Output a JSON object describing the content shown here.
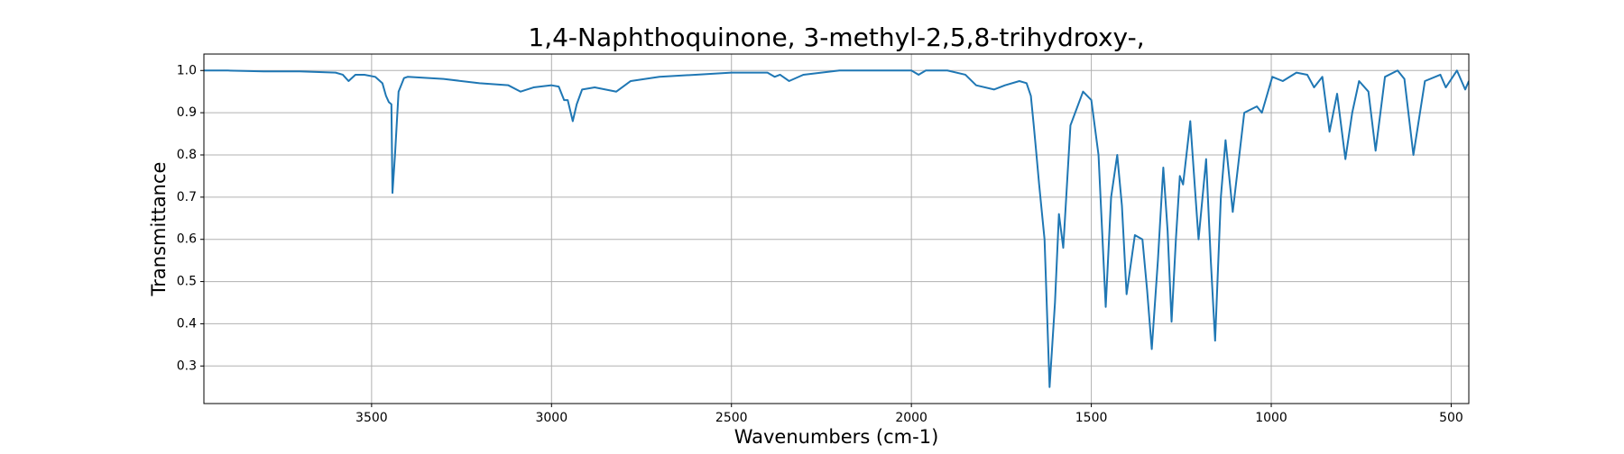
{
  "chart_data": {
    "type": "line",
    "title": "1,4-Naphthoquinone, 3-methyl-2,5,8-trihydroxy-,",
    "x_label": "Wavenumbers (cm-1)",
    "y_label": "Transmittance",
    "color": "#1f77b4",
    "grid": true,
    "xlim": [
      3966,
      451
    ],
    "ylim": [
      0.211,
      1.039
    ],
    "xticks": [
      3500,
      3000,
      2500,
      2000,
      1500,
      1000,
      500
    ],
    "yticks": [
      0.3,
      0.4,
      0.5,
      0.6,
      0.7,
      0.8,
      0.9,
      {
        "value": 1,
        "label": "1.0"
      }
    ],
    "x": [
      3966,
      3900,
      3800,
      3700,
      3600,
      3580,
      3564,
      3545,
      3520,
      3490,
      3470,
      3460,
      3452,
      3445,
      3442,
      3435,
      3425,
      3410,
      3400,
      3300,
      3200,
      3120,
      3086,
      3050,
      3000,
      2980,
      2965,
      2955,
      2941,
      2930,
      2915,
      2880,
      2850,
      2820,
      2780,
      2700,
      2600,
      2500,
      2400,
      2380,
      2365,
      2340,
      2300,
      2200,
      2000,
      1980,
      1960,
      1900,
      1850,
      1820,
      1770,
      1740,
      1700,
      1680,
      1668,
      1660,
      1654,
      1645,
      1630,
      1616,
      1601,
      1590,
      1578,
      1558,
      1523,
      1500,
      1480,
      1460,
      1445,
      1428,
      1415,
      1402,
      1379,
      1358,
      1345,
      1332,
      1315,
      1300,
      1288,
      1277,
      1265,
      1254,
      1245,
      1225,
      1212,
      1202,
      1181,
      1168,
      1156,
      1140,
      1127,
      1107,
      1075,
      1040,
      1026,
      997,
      968,
      930,
      900,
      881,
      858,
      838,
      817,
      794,
      775,
      756,
      730,
      710,
      684,
      649,
      630,
      605,
      573,
      530,
      515,
      484,
      461,
      451
    ],
    "values": [
      1.0,
      1.0,
      0.998,
      0.998,
      0.995,
      0.99,
      0.975,
      0.99,
      0.99,
      0.985,
      0.97,
      0.94,
      0.925,
      0.92,
      0.71,
      0.8,
      0.95,
      0.982,
      0.985,
      0.98,
      0.97,
      0.965,
      0.95,
      0.96,
      0.965,
      0.962,
      0.93,
      0.93,
      0.88,
      0.92,
      0.955,
      0.96,
      0.955,
      0.95,
      0.975,
      0.985,
      0.99,
      0.995,
      0.995,
      0.985,
      0.99,
      0.975,
      0.99,
      1.0,
      1.0,
      0.99,
      1.0,
      1.0,
      0.99,
      0.965,
      0.955,
      0.965,
      0.975,
      0.97,
      0.94,
      0.87,
      0.815,
      0.73,
      0.6,
      0.25,
      0.45,
      0.66,
      0.58,
      0.87,
      0.95,
      0.93,
      0.8,
      0.44,
      0.7,
      0.8,
      0.68,
      0.47,
      0.61,
      0.6,
      0.48,
      0.34,
      0.55,
      0.77,
      0.62,
      0.405,
      0.6,
      0.75,
      0.73,
      0.88,
      0.72,
      0.6,
      0.79,
      0.55,
      0.36,
      0.7,
      0.835,
      0.665,
      0.9,
      0.915,
      0.9,
      0.985,
      0.975,
      0.995,
      0.99,
      0.96,
      0.985,
      0.855,
      0.945,
      0.79,
      0.9,
      0.975,
      0.95,
      0.81,
      0.985,
      1.0,
      0.98,
      0.8,
      0.975,
      0.99,
      0.96,
      1.0,
      0.955,
      0.975
    ]
  }
}
